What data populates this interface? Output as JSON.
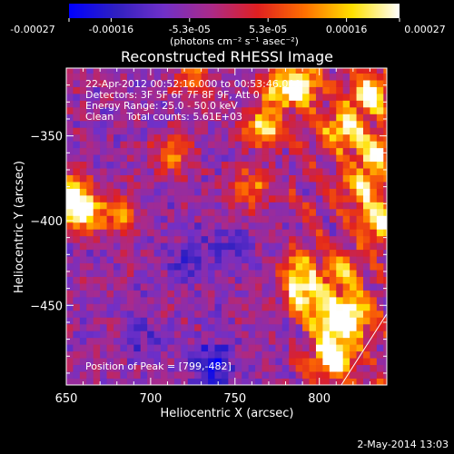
{
  "chart_data": {
    "type": "heatmap",
    "title": "Reconstructed RHESSI Image",
    "xlabel": "Heliocentric X (arcsec)",
    "ylabel": "Heliocentric Y (arcsec)",
    "xlim": [
      650,
      840
    ],
    "ylim": [
      -497,
      -310
    ],
    "x_ticks": [
      650,
      700,
      750,
      800
    ],
    "y_ticks": [
      -350,
      -400,
      -450
    ],
    "colorbar": {
      "ticks": [
        "-0.00027",
        "-0.00016",
        "-5.3e-05",
        "5.3e-05",
        "0.00016",
        "0.00027"
      ],
      "units_line": "(photons cm⁻² s⁻¹ asec⁻²)",
      "range": [
        -0.00027,
        0.00027
      ]
    },
    "info_lines": [
      "22-Apr-2012 00:52:16.000 to 00:53:46.000",
      "Detectors: 3F 5F 6F 7F 8F 9F, Att 0",
      "Energy Range: 25.0 - 50.0 keV",
      "Clean    Total counts: 5.61E+03"
    ],
    "peak_label": "Position of Peak = [799,-482]",
    "peak_position": [
      799,
      -482
    ],
    "bright_sources": [
      {
        "x": 808,
        "y": -480,
        "intensity": 1.0
      },
      {
        "x": 820,
        "y": -455,
        "intensity": 0.85
      },
      {
        "x": 792,
        "y": -445,
        "intensity": 0.8
      },
      {
        "x": 808,
        "y": -460,
        "intensity": 0.85
      },
      {
        "x": 830,
        "y": -325,
        "intensity": 0.85
      },
      {
        "x": 815,
        "y": -345,
        "intensity": 0.8
      },
      {
        "x": 833,
        "y": -360,
        "intensity": 0.75
      },
      {
        "x": 836,
        "y": -400,
        "intensity": 0.85
      },
      {
        "x": 825,
        "y": -380,
        "intensity": 0.65
      },
      {
        "x": 768,
        "y": -345,
        "intensity": 0.9
      },
      {
        "x": 790,
        "y": -320,
        "intensity": 0.8
      },
      {
        "x": 775,
        "y": -322,
        "intensity": 0.7
      },
      {
        "x": 658,
        "y": -395,
        "intensity": 0.95
      },
      {
        "x": 653,
        "y": -383,
        "intensity": 0.8
      },
      {
        "x": 680,
        "y": -395,
        "intensity": 0.6
      },
      {
        "x": 713,
        "y": -360,
        "intensity": 0.55
      },
      {
        "x": 760,
        "y": -380,
        "intensity": 0.55
      },
      {
        "x": 725,
        "y": -315,
        "intensity": 0.45
      },
      {
        "x": 785,
        "y": -430,
        "intensity": 0.6
      },
      {
        "x": 812,
        "y": -430,
        "intensity": 0.6
      }
    ],
    "dark_regions": [
      {
        "x": 737,
        "y": -485,
        "intensity": -0.6
      },
      {
        "x": 722,
        "y": -420,
        "intensity": -0.35
      },
      {
        "x": 695,
        "y": -470,
        "intensity": -0.3
      },
      {
        "x": 745,
        "y": -415,
        "intensity": -0.3
      }
    ],
    "limb_line": [
      [
        813,
        -497
      ],
      [
        840,
        -455
      ]
    ],
    "colors": {
      "colormap": [
        "#0000ff",
        "#3020c0",
        "#7030c8",
        "#aa2a8a",
        "#e02020",
        "#ff7000",
        "#ffe000",
        "#ffffff"
      ]
    }
  },
  "footer": {
    "timestamp": "2-May-2014 13:03"
  }
}
